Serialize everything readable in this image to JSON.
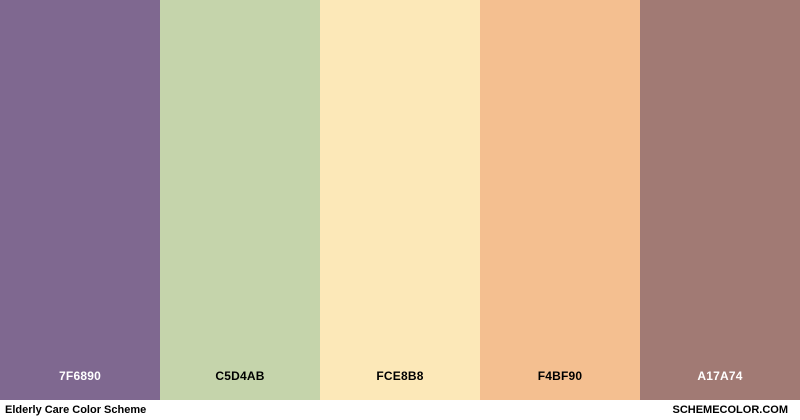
{
  "swatches": [
    {
      "hex": "7F6890",
      "color": "#7F6890",
      "text_color": "#ffffff"
    },
    {
      "hex": "C5D4AB",
      "color": "#C5D4AB",
      "text_color": "#000000"
    },
    {
      "hex": "FCE8B8",
      "color": "#FCE8B8",
      "text_color": "#000000"
    },
    {
      "hex": "F4BF90",
      "color": "#F4BF90",
      "text_color": "#000000"
    },
    {
      "hex": "A17A74",
      "color": "#A17A74",
      "text_color": "#ffffff"
    }
  ],
  "footer": {
    "title": "Elderly Care Color Scheme",
    "site": "SCHEMECOLOR.COM"
  }
}
